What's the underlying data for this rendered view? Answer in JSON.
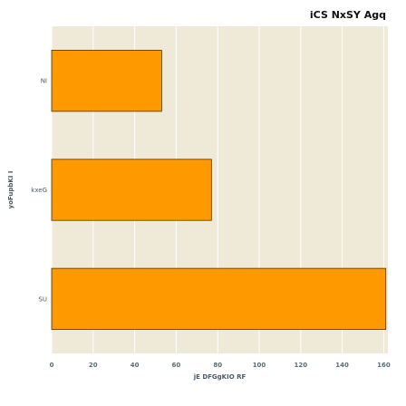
{
  "chart_data": {
    "type": "bar",
    "orientation": "horizontal",
    "title": "iCS NxSY  Agq",
    "xlabel": "jE DFGgKIO RF",
    "ylabel": "yoFupbKI I",
    "categories": [
      "NI",
      "kxeG",
      "SU"
    ],
    "values": [
      53,
      77,
      161
    ],
    "xlim": [
      0,
      162
    ],
    "xticks": [
      0,
      20,
      40,
      60,
      80,
      100,
      120,
      140,
      160
    ],
    "grid": true,
    "colors": {
      "bar_fill": "#ff9900",
      "bar_edge": "#4a3300",
      "plot_bg": "#efe9d8",
      "grid": "#ffffff"
    }
  }
}
